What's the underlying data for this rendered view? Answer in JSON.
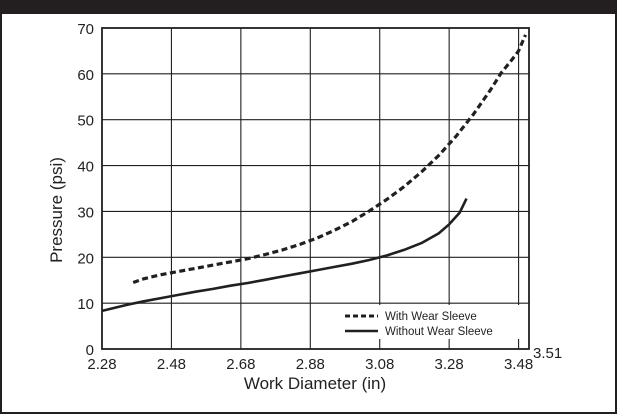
{
  "chart_data": {
    "type": "line",
    "title": "",
    "xlabel": "Work Diameter (in)",
    "ylabel": "Pressure (psi)",
    "xlim": [
      2.28,
      3.51
    ],
    "ylim": [
      0,
      70
    ],
    "x_ticks": [
      "2.28",
      "2.48",
      "2.68",
      "2.88",
      "3.08",
      "3.28",
      "3.48"
    ],
    "x_extra_label": "3.51",
    "y_ticks": [
      "0",
      "10",
      "20",
      "30",
      "40",
      "50",
      "60",
      "70"
    ],
    "grid": true,
    "legend_position": "bottom-right",
    "series": [
      {
        "name": "With Wear Sleeve",
        "style": "dashed",
        "x": [
          2.37,
          2.4,
          2.45,
          2.5,
          2.55,
          2.6,
          2.65,
          2.7,
          2.75,
          2.8,
          2.85,
          2.9,
          2.95,
          3.0,
          3.05,
          3.1,
          3.15,
          3.2,
          3.25,
          3.3,
          3.35,
          3.4,
          3.43,
          3.46,
          3.48,
          3.49,
          3.5
        ],
        "y": [
          14.5,
          15.3,
          16.2,
          16.9,
          17.6,
          18.3,
          19.0,
          19.7,
          20.6,
          21.6,
          22.8,
          24.2,
          25.9,
          27.8,
          30.1,
          32.6,
          35.4,
          38.6,
          42.2,
          46.4,
          51.2,
          56.6,
          60.2,
          63.0,
          65.0,
          66.8,
          68.5
        ]
      },
      {
        "name": "Without Wear Sleeve",
        "style": "solid",
        "x": [
          2.28,
          2.35,
          2.4,
          2.45,
          2.5,
          2.55,
          2.6,
          2.65,
          2.7,
          2.75,
          2.8,
          2.85,
          2.9,
          2.95,
          3.0,
          3.05,
          3.1,
          3.15,
          3.2,
          3.25,
          3.28,
          3.31,
          3.33
        ],
        "y": [
          8.3,
          9.6,
          10.4,
          11.1,
          11.8,
          12.5,
          13.1,
          13.8,
          14.4,
          15.1,
          15.8,
          16.5,
          17.2,
          17.9,
          18.6,
          19.4,
          20.4,
          21.6,
          23.1,
          25.2,
          27.2,
          29.7,
          32.8
        ]
      }
    ]
  },
  "colors": {
    "ink": "#231f20",
    "grid": "#231f20",
    "background": "#ffffff"
  }
}
